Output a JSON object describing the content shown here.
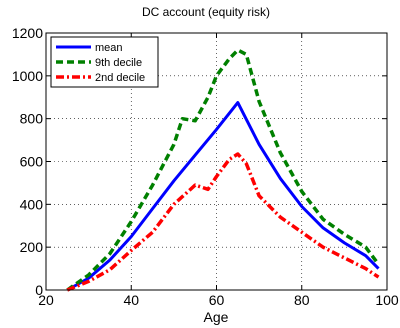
{
  "chart_data": {
    "type": "line",
    "title": "DC account (equity risk)",
    "xlabel": "Age",
    "ylabel": "",
    "xlim": [
      20,
      100
    ],
    "ylim": [
      0,
      1200
    ],
    "x_ticks": [
      20,
      40,
      60,
      80,
      100
    ],
    "y_ticks": [
      0,
      200,
      400,
      600,
      800,
      1000,
      1200
    ],
    "x_tick_labels": [
      "20",
      "40",
      "60",
      "80",
      "100"
    ],
    "y_tick_labels": [
      "0",
      "200",
      "400",
      "600",
      "800",
      "1000",
      "1200"
    ],
    "grid": true,
    "legend_position": "top-left",
    "series": [
      {
        "name": "mean",
        "color": "#0000ff",
        "style": "solid",
        "x": [
          25,
          30,
          35,
          40,
          45,
          50,
          55,
          60,
          65,
          70,
          75,
          80,
          85,
          90,
          95,
          98
        ],
        "y": [
          0,
          55,
          140,
          250,
          380,
          510,
          630,
          750,
          875,
          680,
          520,
          390,
          290,
          220,
          160,
          100
        ]
      },
      {
        "name": "9th decile",
        "color": "#008000",
        "style": "dashed",
        "x": [
          25,
          30,
          35,
          40,
          45,
          50,
          52,
          55,
          58,
          60,
          63,
          65,
          67,
          70,
          75,
          80,
          85,
          90,
          95,
          98
        ],
        "y": [
          0,
          70,
          170,
          320,
          490,
          680,
          800,
          790,
          900,
          1000,
          1080,
          1120,
          1100,
          880,
          640,
          460,
          330,
          260,
          200,
          120
        ]
      },
      {
        "name": "2nd decile",
        "color": "#ff0000",
        "style": "dashdot",
        "x": [
          25,
          30,
          35,
          40,
          45,
          50,
          55,
          58,
          60,
          63,
          65,
          67,
          70,
          75,
          80,
          85,
          90,
          95,
          98
        ],
        "y": [
          0,
          40,
          95,
          185,
          270,
          400,
          490,
          470,
          530,
          610,
          635,
          590,
          440,
          340,
          270,
          200,
          150,
          100,
          60
        ]
      }
    ]
  }
}
